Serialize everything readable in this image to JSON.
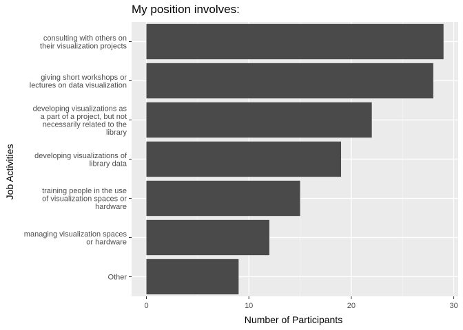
{
  "chart_data": {
    "type": "bar",
    "orientation": "horizontal",
    "title": "My position involves:",
    "xlabel": "Number of Participants",
    "ylabel": "Job Activities",
    "xlim": [
      0,
      30
    ],
    "x_ticks": [
      0,
      10,
      20,
      30
    ],
    "grid": true,
    "legend": "none",
    "categories": [
      [
        "consulting with others on",
        "their visualization projects"
      ],
      [
        "giving short workshops or",
        "lectures on data visualization"
      ],
      [
        "developing visualizations as",
        "a part of a project, but not",
        "necessarily related to the",
        "library"
      ],
      [
        "developing visualizations of",
        "library data"
      ],
      [
        "training people in the use",
        "of visualization spaces or",
        "hardware"
      ],
      [
        "managing visualization spaces",
        "or hardware"
      ],
      [
        "Other"
      ]
    ],
    "values": [
      29,
      28,
      22,
      19,
      15,
      12,
      9
    ],
    "colors": {
      "bar": "#4a4a4a",
      "panel": "#ebebeb",
      "grid_major": "#ffffff",
      "grid_minor": "#f5f5f5",
      "tick_text": "#4d4d4d",
      "tick_mark": "#333333"
    }
  }
}
